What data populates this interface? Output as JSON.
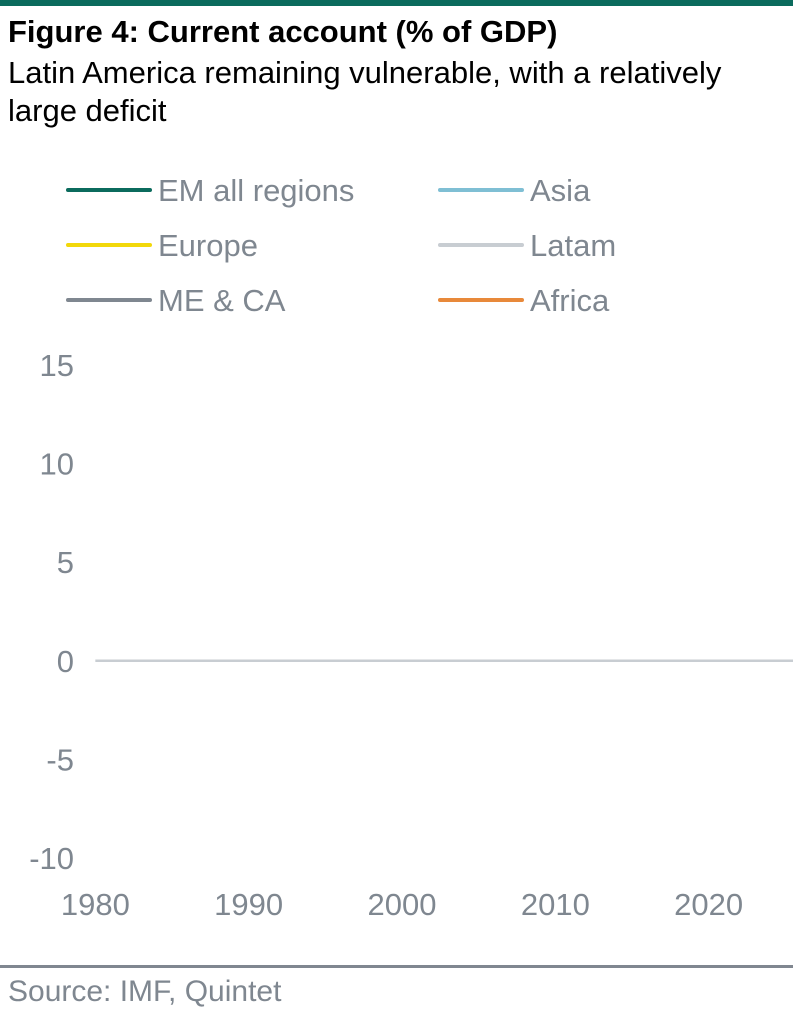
{
  "header": {
    "title": "Figure 4: Current account (% of GDP)",
    "subtitle": "Latin America remaining vulnerable, with a relatively large deficit"
  },
  "footer": {
    "source": "Source: IMF, Quintet"
  },
  "chart_data": {
    "type": "line",
    "title": "Figure 4: Current account (% of GDP)",
    "subtitle": "Latin America remaining vulnerable, with a relatively large deficit",
    "xlabel": "",
    "ylabel": "",
    "xlim": [
      1979,
      2025.5
    ],
    "ylim": [
      -10,
      15
    ],
    "xticks": [
      1980,
      1990,
      2000,
      2010,
      2020
    ],
    "yticks": [
      15,
      10,
      5,
      0,
      -5,
      -10
    ],
    "ytick_labels": [
      "15",
      "10",
      "5",
      "0",
      "-5",
      "-10"
    ],
    "grid": false,
    "zero_line": true,
    "legend_position": "top",
    "x": [
      1980,
      1981,
      1982,
      1983,
      1984,
      1985,
      1986,
      1987,
      1988,
      1989,
      1990,
      1991,
      1992,
      1993,
      1994,
      1995,
      1996,
      1997,
      1998,
      1999,
      2000,
      2001,
      2002,
      2003,
      2004,
      2005,
      2006,
      2007,
      2008,
      2009,
      2010,
      2011,
      2012,
      2013,
      2014,
      2015,
      2016,
      2017,
      2018,
      2019,
      2020,
      2021
    ],
    "series": [
      {
        "name": "EM all regions",
        "color": "#0b6b5d",
        "values": [
          null,
          null,
          null,
          null,
          null,
          null,
          null,
          null,
          null,
          null,
          null,
          null,
          null,
          null,
          null,
          null,
          null,
          null,
          null,
          null,
          null,
          null,
          null,
          null,
          null,
          null,
          null,
          null,
          null,
          null,
          null,
          null,
          null,
          null,
          null,
          null,
          null,
          null,
          null,
          null,
          null,
          null
        ]
      },
      {
        "name": "Asia",
        "color": "#7fbfd4",
        "values": [
          null,
          null,
          null,
          null,
          null,
          null,
          null,
          null,
          null,
          null,
          null,
          null,
          null,
          null,
          null,
          null,
          null,
          null,
          null,
          null,
          null,
          null,
          null,
          null,
          null,
          null,
          null,
          null,
          null,
          null,
          null,
          null,
          null,
          null,
          null,
          null,
          null,
          null,
          null,
          null,
          null,
          null
        ]
      },
      {
        "name": "Europe",
        "color": "#f2d80a",
        "values": [
          null,
          null,
          null,
          null,
          null,
          null,
          null,
          null,
          null,
          null,
          null,
          null,
          null,
          null,
          null,
          null,
          null,
          null,
          null,
          null,
          null,
          null,
          null,
          null,
          null,
          null,
          null,
          null,
          null,
          null,
          null,
          null,
          null,
          null,
          null,
          null,
          null,
          null,
          null,
          null,
          null,
          null
        ]
      },
      {
        "name": "Latam",
        "color": "#c8cdd2",
        "values": [
          null,
          null,
          null,
          null,
          null,
          null,
          null,
          null,
          null,
          null,
          null,
          null,
          null,
          null,
          null,
          null,
          null,
          null,
          null,
          null,
          null,
          null,
          null,
          null,
          null,
          null,
          null,
          null,
          null,
          null,
          null,
          null,
          null,
          null,
          null,
          null,
          null,
          null,
          null,
          null,
          null,
          null
        ]
      },
      {
        "name": "ME & CA",
        "color": "#7f8790",
        "values": [
          null,
          null,
          null,
          null,
          null,
          null,
          null,
          null,
          null,
          null,
          null,
          null,
          null,
          null,
          null,
          null,
          null,
          null,
          null,
          null,
          null,
          null,
          null,
          null,
          null,
          null,
          null,
          null,
          null,
          null,
          null,
          null,
          null,
          null,
          null,
          null,
          null,
          null,
          null,
          null,
          null,
          null
        ]
      },
      {
        "name": "Africa",
        "color": "#e8893a",
        "values": [
          null,
          null,
          null,
          null,
          null,
          null,
          null,
          null,
          null,
          null,
          null,
          null,
          null,
          null,
          null,
          null,
          null,
          null,
          null,
          null,
          null,
          null,
          null,
          null,
          null,
          null,
          null,
          null,
          null,
          null,
          null,
          null,
          null,
          null,
          null,
          null,
          null,
          null,
          null,
          null,
          null,
          null
        ]
      }
    ]
  }
}
